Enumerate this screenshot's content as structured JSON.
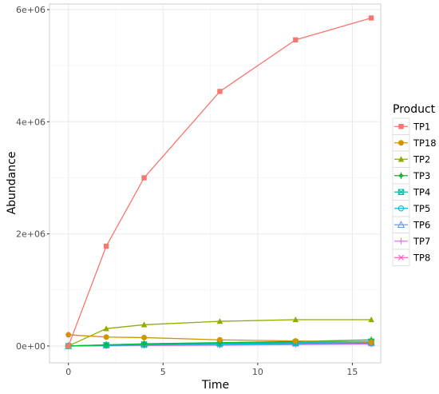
{
  "chart_data": {
    "type": "line",
    "title": "",
    "xlabel": "Time",
    "ylabel": "Abundance",
    "xlim": [
      -1,
      16.5
    ],
    "ylim": [
      -300000,
      6100000
    ],
    "x_ticks": [
      0,
      5,
      10,
      15
    ],
    "x_tick_labels": [
      "0",
      "5",
      "10",
      "15"
    ],
    "y_ticks": [
      0,
      2000000,
      4000000,
      6000000
    ],
    "y_tick_labels": [
      "0e+00",
      "2e+06",
      "4e+06",
      "6e+06"
    ],
    "grid": true,
    "legend_title": "Product",
    "legend_position": "right",
    "x": [
      0,
      2,
      4,
      8,
      12,
      16
    ],
    "series": [
      {
        "name": "TP1",
        "color": "#F8766D",
        "marker": "square",
        "values": [
          0,
          1780000,
          3000000,
          4540000,
          5460000,
          5850000
        ]
      },
      {
        "name": "TP18",
        "color": "#D39200",
        "marker": "circle",
        "values": [
          200000,
          160000,
          150000,
          110000,
          90000,
          70000
        ]
      },
      {
        "name": "TP2",
        "color": "#93AA00",
        "marker": "triangle",
        "values": [
          0,
          310000,
          380000,
          440000,
          470000,
          470000
        ]
      },
      {
        "name": "TP3",
        "color": "#00BA38",
        "marker": "cross-diamond",
        "values": [
          0,
          20000,
          40000,
          60000,
          80000,
          110000
        ]
      },
      {
        "name": "TP4",
        "color": "#00C19F",
        "marker": "box-cross",
        "values": [
          0,
          15000,
          30000,
          50000,
          65000,
          80000
        ]
      },
      {
        "name": "TP5",
        "color": "#00B9E3",
        "marker": "circle-open",
        "values": [
          0,
          10000,
          20000,
          30000,
          45000,
          50000
        ]
      },
      {
        "name": "TP6",
        "color": "#619CFF",
        "marker": "triangle-open",
        "values": [
          0,
          20000,
          35000,
          50000,
          55000,
          60000
        ]
      },
      {
        "name": "TP7",
        "color": "#DB72FB",
        "marker": "plus",
        "values": [
          0,
          5000,
          10000,
          15000,
          25000,
          35000
        ]
      },
      {
        "name": "TP8",
        "color": "#FF61C3",
        "marker": "x",
        "values": [
          0,
          5000,
          10000,
          20000,
          30000,
          40000
        ]
      }
    ]
  }
}
